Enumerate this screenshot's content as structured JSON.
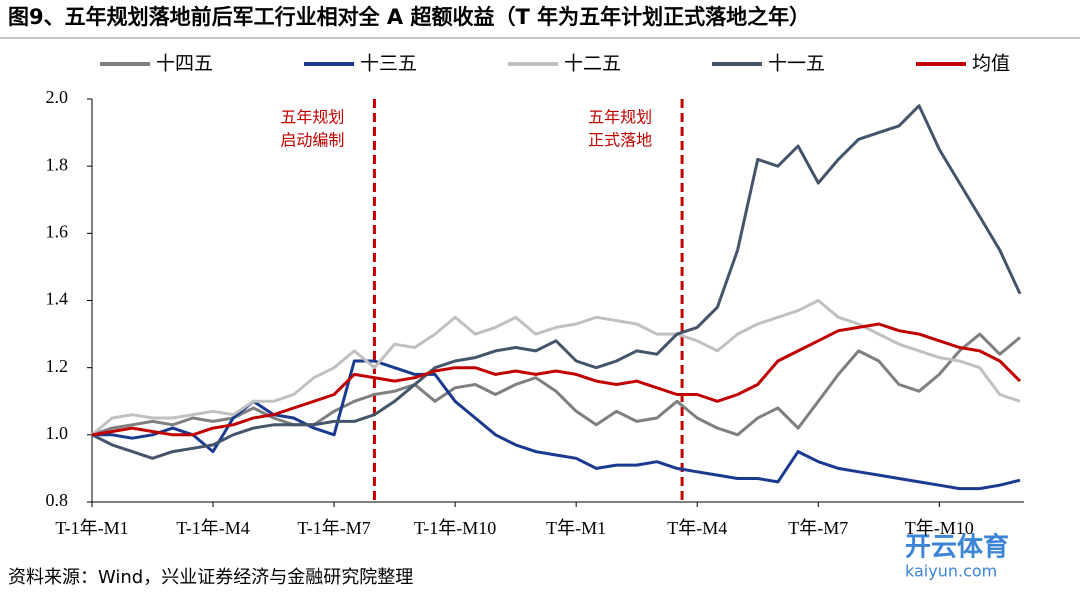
{
  "chart_data": {
    "type": "line",
    "title": "图9、五年规划落地前后军工行业相对全 A 超额收益（T 年为五年计划正式落地之年）",
    "source": "资料来源：Wind，兴业证券经济与金融研究院整理",
    "watermark": [
      "开云体育",
      "kaiyun.com"
    ],
    "categories": [
      "T-1年-M1",
      null,
      null,
      null,
      null,
      null,
      "T-1年-M4",
      null,
      null,
      null,
      null,
      null,
      "T-1年-M7",
      null,
      null,
      null,
      null,
      null,
      "T-1年-M10",
      null,
      null,
      null,
      null,
      null,
      "T年-M1",
      null,
      null,
      null,
      null,
      null,
      "T年-M4",
      null,
      null,
      null,
      null,
      null,
      "T年-M7",
      null,
      null,
      null,
      null,
      null,
      "T年-M10",
      null,
      null,
      null,
      null
    ],
    "ylim": [
      0.8,
      2.0
    ],
    "yticks": [
      0.8,
      {
        "value": 1,
        "label": "1.0"
      },
      1.2,
      1.4,
      1.6,
      1.8,
      {
        "value": 2,
        "label": "2.0"
      }
    ],
    "grid": false,
    "series": [
      {
        "name": "十四五",
        "color": "#7f7f7f",
        "values": [
          1.0,
          1.02,
          1.03,
          1.04,
          1.03,
          1.05,
          1.04,
          1.05,
          1.08,
          1.05,
          1.03,
          1.03,
          1.07,
          1.1,
          1.12,
          1.13,
          1.15,
          1.1,
          1.14,
          1.15,
          1.12,
          1.15,
          1.17,
          1.13,
          1.07,
          1.03,
          1.07,
          1.04,
          1.05,
          1.1,
          1.05,
          1.02,
          1.0,
          1.05,
          1.08,
          1.02,
          1.1,
          1.18,
          1.25,
          1.22,
          1.15,
          1.13,
          1.18,
          1.25,
          1.3,
          1.24,
          1.29
        ]
      },
      {
        "name": "十三五",
        "color": "#1a3a8f",
        "values": [
          1.0,
          1.0,
          0.99,
          1.0,
          1.02,
          1.0,
          0.95,
          1.05,
          1.1,
          1.06,
          1.05,
          1.02,
          1.0,
          1.22,
          1.22,
          1.2,
          1.18,
          1.18,
          1.1,
          1.05,
          1.0,
          0.97,
          0.95,
          0.94,
          0.93,
          0.9,
          0.91,
          0.91,
          0.92,
          0.9,
          0.89,
          0.88,
          0.87,
          0.87,
          0.86,
          0.95,
          0.92,
          0.9,
          0.89,
          0.88,
          0.87,
          0.86,
          0.85,
          0.84,
          0.84,
          0.85,
          0.865
        ]
      },
      {
        "name": "十二五",
        "color": "#c0c0c0",
        "values": [
          1.0,
          1.05,
          1.06,
          1.05,
          1.05,
          1.06,
          1.07,
          1.06,
          1.1,
          1.1,
          1.12,
          1.17,
          1.2,
          1.25,
          1.2,
          1.27,
          1.26,
          1.3,
          1.35,
          1.3,
          1.32,
          1.35,
          1.3,
          1.32,
          1.33,
          1.35,
          1.34,
          1.33,
          1.3,
          1.3,
          1.28,
          1.25,
          1.3,
          1.33,
          1.35,
          1.37,
          1.4,
          1.35,
          1.33,
          1.3,
          1.27,
          1.25,
          1.23,
          1.22,
          1.2,
          1.12,
          1.1
        ]
      },
      {
        "name": "十一五",
        "color": "#44546a",
        "values": [
          1.0,
          0.97,
          0.95,
          0.93,
          0.95,
          0.96,
          0.97,
          1.0,
          1.02,
          1.03,
          1.03,
          1.03,
          1.04,
          1.04,
          1.06,
          1.1,
          1.15,
          1.2,
          1.22,
          1.23,
          1.25,
          1.26,
          1.25,
          1.28,
          1.22,
          1.2,
          1.22,
          1.25,
          1.24,
          1.3,
          1.32,
          1.38,
          1.55,
          1.82,
          1.8,
          1.86,
          1.75,
          1.82,
          1.88,
          1.9,
          1.92,
          1.98,
          1.85,
          1.75,
          1.65,
          1.55,
          1.42
        ]
      },
      {
        "name": "均值",
        "color": "#c00000",
        "values": [
          1.0,
          1.01,
          1.02,
          1.01,
          1.0,
          1.0,
          1.02,
          1.03,
          1.05,
          1.06,
          1.08,
          1.1,
          1.12,
          1.18,
          1.17,
          1.16,
          1.17,
          1.19,
          1.2,
          1.2,
          1.18,
          1.19,
          1.18,
          1.19,
          1.18,
          1.16,
          1.15,
          1.16,
          1.14,
          1.12,
          1.12,
          1.1,
          1.12,
          1.15,
          1.22,
          1.25,
          1.28,
          1.31,
          1.32,
          1.33,
          1.31,
          1.3,
          1.28,
          1.26,
          1.25,
          1.22,
          1.16
        ]
      }
    ],
    "annotations": [
      {
        "x": 14,
        "color": "#c00000",
        "text": [
          "五年规划",
          "启动编制"
        ]
      },
      {
        "x": 29.25,
        "color": "#c00000",
        "text": [
          "五年规划",
          "正式落地"
        ]
      }
    ]
  }
}
